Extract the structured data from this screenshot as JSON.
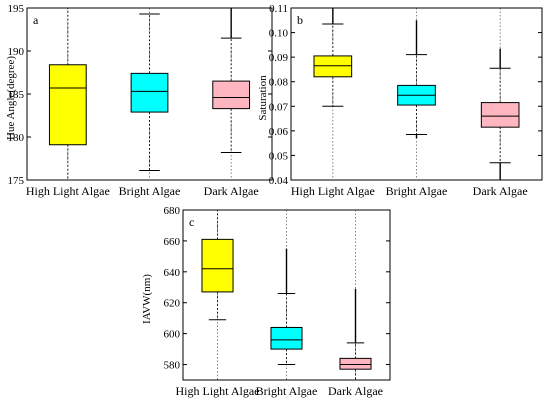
{
  "chart_data": [
    {
      "id": "a",
      "type": "box",
      "panel_label": "a",
      "ylabel": "Hue Angle(degree)",
      "xlabel": "",
      "ylim": [
        175,
        195
      ],
      "yticks": [
        175,
        180,
        185,
        190,
        195
      ],
      "grid": "vertical-dotted",
      "categories": [
        "High Light Algae",
        "Bright Algae",
        "Dark Algae"
      ],
      "boxes": [
        {
          "category": "High Light Algae",
          "whisker_low": 175,
          "q1": 179.1,
          "median": 185.7,
          "q3": 188.4,
          "whisker_high": 195,
          "color": "#ffff00"
        },
        {
          "category": "Bright Algae",
          "whisker_low": 176.1,
          "q1": 182.9,
          "median": 185.3,
          "q3": 187.4,
          "whisker_high": 194.3,
          "color": "#00ffff"
        },
        {
          "category": "Dark Algae",
          "whisker_low": 178.2,
          "q1": 183.3,
          "median": 184.6,
          "q3": 186.5,
          "whisker_high": 191.5,
          "color": "#ffb6c1",
          "outlier_line_to": 195
        }
      ]
    },
    {
      "id": "b",
      "type": "box",
      "panel_label": "b",
      "ylabel": "Saturation",
      "xlabel": "",
      "ylim": [
        0.04,
        0.11
      ],
      "yticks": [
        0.04,
        0.05,
        0.06,
        0.07,
        0.08,
        0.09,
        0.1,
        0.11
      ],
      "ytick_labels": [
        "0.04",
        "0.05",
        "0.06",
        "0.07",
        "0.08",
        "0.09",
        "0.10",
        "0.11"
      ],
      "grid": "vertical-dotted",
      "categories": [
        "High Light Algae",
        "Bright Algae",
        "Dark Algae"
      ],
      "boxes": [
        {
          "category": "High Light Algae",
          "whisker_low": 0.07,
          "q1": 0.082,
          "median": 0.0865,
          "q3": 0.0905,
          "whisker_high": 0.1035,
          "color": "#ffff00",
          "outlier_line_to": 0.11
        },
        {
          "category": "Bright Algae",
          "whisker_low": 0.0585,
          "q1": 0.0705,
          "median": 0.0745,
          "q3": 0.0785,
          "whisker_high": 0.091,
          "color": "#00ffff",
          "outlier_line_to": 0.105,
          "outlier_low_to": 0.057
        },
        {
          "category": "Dark Algae",
          "whisker_low": 0.047,
          "q1": 0.0615,
          "median": 0.066,
          "q3": 0.0715,
          "whisker_high": 0.0855,
          "color": "#ffb6c1",
          "outlier_line_to": 0.0935,
          "outlier_low_to": 0.04
        }
      ]
    },
    {
      "id": "c",
      "type": "box",
      "panel_label": "c",
      "ylabel": "IAVW(nm)",
      "xlabel": "",
      "ylim": [
        570,
        680
      ],
      "yticks": [
        580,
        600,
        620,
        640,
        660,
        680
      ],
      "grid": "vertical-dotted",
      "categories": [
        "High Light Algae",
        "Bright Algae",
        "Dark Algae"
      ],
      "boxes": [
        {
          "category": "High Light Algae",
          "whisker_low": 609,
          "q1": 627,
          "median": 642,
          "q3": 661,
          "whisker_high": 680,
          "color": "#ffff00"
        },
        {
          "category": "Bright Algae",
          "whisker_low": 580,
          "q1": 590,
          "median": 596,
          "q3": 604,
          "whisker_high": 626,
          "color": "#00ffff",
          "outlier_line_to": 655
        },
        {
          "category": "Dark Algae",
          "whisker_low": 570,
          "q1": 577,
          "median": 580,
          "q3": 584,
          "whisker_high": 594,
          "color": "#ffb6c1",
          "outlier_line_to": 629
        }
      ]
    }
  ]
}
